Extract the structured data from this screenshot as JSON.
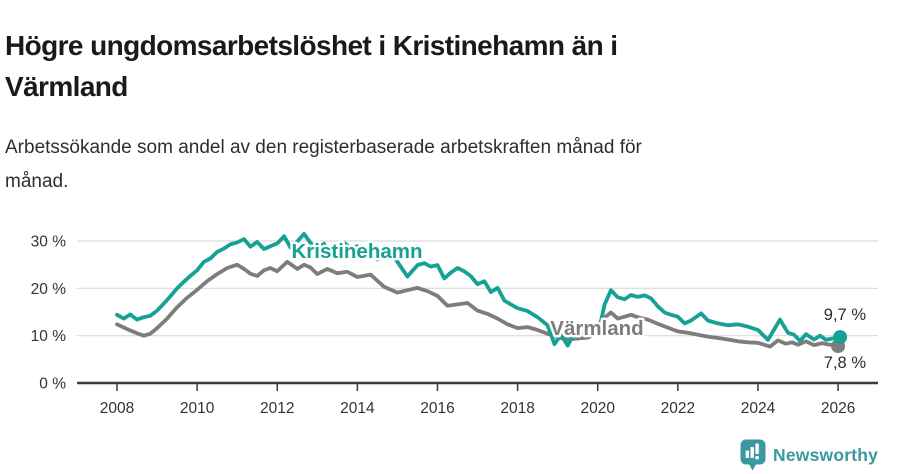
{
  "header": {
    "title_lines": [
      "Högre ungdomsarbetslöshet i Kristinehamn än i",
      "Värmland"
    ],
    "subtitle_lines": [
      "Arbetssökande som andel av den registerbaserade arbetskraften månad för",
      "månad."
    ]
  },
  "chart_data": {
    "type": "line",
    "title": "Högre ungdomsarbetslöshet i Kristinehamn än i Värmland",
    "subtitle": "Arbetssökande som andel av den registerbaserade arbetskraften månad för månad.",
    "unit": "%",
    "grid": "horizontal",
    "legend_position": "inline-labels",
    "x_axis": {
      "ticks": [
        2008,
        2010,
        2012,
        2014,
        2016,
        2018,
        2020,
        2022,
        2024,
        2026
      ],
      "range": [
        2007.8,
        2027.0
      ]
    },
    "y_axis": {
      "ticks": [
        {
          "value": 0,
          "label": "0 %"
        },
        {
          "value": 10,
          "label": "10 %"
        },
        {
          "value": 20,
          "label": "20 %"
        },
        {
          "value": 30,
          "label": "30 %"
        }
      ],
      "range": [
        0,
        32
      ]
    },
    "series": [
      {
        "name": "Värmland",
        "color": "#7d7d7d",
        "end_label": "7,8 %",
        "final_value": 7.8,
        "points": [
          [
            2008,
            12.4
          ],
          [
            2008.25,
            11.4
          ],
          [
            2008.5,
            10.5
          ],
          [
            2008.67,
            10
          ],
          [
            2008.83,
            10.4
          ],
          [
            2009,
            11.6
          ],
          [
            2009.25,
            13.6
          ],
          [
            2009.5,
            16
          ],
          [
            2009.75,
            18
          ],
          [
            2010,
            19.7
          ],
          [
            2010.25,
            21.5
          ],
          [
            2010.5,
            23
          ],
          [
            2010.75,
            24.3
          ],
          [
            2011,
            25
          ],
          [
            2011.17,
            24.1
          ],
          [
            2011.33,
            23.1
          ],
          [
            2011.5,
            22.6
          ],
          [
            2011.67,
            23.8
          ],
          [
            2011.83,
            24.3
          ],
          [
            2012,
            23.6
          ],
          [
            2012.25,
            25.6
          ],
          [
            2012.5,
            24.1
          ],
          [
            2012.67,
            25
          ],
          [
            2012.83,
            24.4
          ],
          [
            2013,
            23
          ],
          [
            2013.25,
            24.1
          ],
          [
            2013.5,
            23.2
          ],
          [
            2013.75,
            23.5
          ],
          [
            2014,
            22.4
          ],
          [
            2014.33,
            22.9
          ],
          [
            2014.67,
            20.3
          ],
          [
            2015,
            19.1
          ],
          [
            2015.25,
            19.6
          ],
          [
            2015.5,
            20.1
          ],
          [
            2015.75,
            19.4
          ],
          [
            2016,
            18.4
          ],
          [
            2016.25,
            16.3
          ],
          [
            2016.5,
            16.6
          ],
          [
            2016.75,
            16.9
          ],
          [
            2017,
            15.3
          ],
          [
            2017.25,
            14.6
          ],
          [
            2017.5,
            13.6
          ],
          [
            2017.75,
            12.4
          ],
          [
            2018,
            11.6
          ],
          [
            2018.25,
            11.8
          ],
          [
            2018.5,
            11.2
          ],
          [
            2018.75,
            10.4
          ],
          [
            2019,
            9.7
          ],
          [
            2019.25,
            9.2
          ],
          [
            2019.5,
            9.4
          ],
          [
            2019.75,
            9.6
          ],
          [
            2020,
            10.6
          ],
          [
            2020.17,
            13.8
          ],
          [
            2020.33,
            14.9
          ],
          [
            2020.5,
            13.6
          ],
          [
            2020.67,
            14
          ],
          [
            2020.83,
            14.4
          ],
          [
            2021,
            13.9
          ],
          [
            2021.25,
            13.4
          ],
          [
            2021.5,
            12.5
          ],
          [
            2021.75,
            11.7
          ],
          [
            2022,
            10.9
          ],
          [
            2022.25,
            10.6
          ],
          [
            2022.5,
            10.2
          ],
          [
            2022.75,
            9.8
          ],
          [
            2023,
            9.5
          ],
          [
            2023.25,
            9.2
          ],
          [
            2023.5,
            8.8
          ],
          [
            2023.75,
            8.6
          ],
          [
            2024,
            8.5
          ],
          [
            2024.3,
            7.7
          ],
          [
            2024.5,
            9
          ],
          [
            2024.7,
            8.3
          ],
          [
            2024.85,
            8.6
          ],
          [
            2025,
            8.1
          ],
          [
            2025.2,
            8.8
          ],
          [
            2025.4,
            8
          ],
          [
            2025.6,
            8.4
          ],
          [
            2025.8,
            8.1
          ],
          [
            2026,
            7.8
          ]
        ]
      },
      {
        "name": "Kristinehamn",
        "color": "#16a195",
        "end_label": "9,7 %",
        "final_value": 9.7,
        "points": [
          [
            2008,
            14.4
          ],
          [
            2008.17,
            13.6
          ],
          [
            2008.33,
            14.5
          ],
          [
            2008.5,
            13.4
          ],
          [
            2008.67,
            13.9
          ],
          [
            2008.83,
            14.2
          ],
          [
            2009,
            15.3
          ],
          [
            2009.17,
            16.8
          ],
          [
            2009.33,
            18.3
          ],
          [
            2009.5,
            20
          ],
          [
            2009.67,
            21.4
          ],
          [
            2009.83,
            22.6
          ],
          [
            2010,
            23.8
          ],
          [
            2010.17,
            25.6
          ],
          [
            2010.33,
            26.3
          ],
          [
            2010.5,
            27.7
          ],
          [
            2010.67,
            28.4
          ],
          [
            2010.83,
            29.3
          ],
          [
            2011,
            29.7
          ],
          [
            2011.17,
            30.4
          ],
          [
            2011.33,
            28.8
          ],
          [
            2011.5,
            29.8
          ],
          [
            2011.67,
            28.3
          ],
          [
            2011.83,
            28.9
          ],
          [
            2012,
            29.5
          ],
          [
            2012.17,
            31
          ],
          [
            2012.33,
            28.6
          ],
          [
            2012.5,
            29.9
          ],
          [
            2012.67,
            31.5
          ],
          [
            2012.83,
            29.6
          ],
          [
            2013,
            28.3
          ],
          [
            2013.17,
            29.4
          ],
          [
            2013.33,
            26.9
          ],
          [
            2013.5,
            28.2
          ],
          [
            2013.67,
            29.6
          ],
          [
            2013.83,
            28.6
          ],
          [
            2014,
            28.9
          ],
          [
            2014.17,
            27.6
          ],
          [
            2014.33,
            28.3
          ],
          [
            2014.5,
            26.1
          ],
          [
            2014.67,
            26.9
          ],
          [
            2014.83,
            27.4
          ],
          [
            2015,
            25.6
          ],
          [
            2015.25,
            22.5
          ],
          [
            2015.5,
            24.9
          ],
          [
            2015.67,
            25.3
          ],
          [
            2015.83,
            24.6
          ],
          [
            2016,
            24.9
          ],
          [
            2016.17,
            22.1
          ],
          [
            2016.33,
            23.3
          ],
          [
            2016.5,
            24.3
          ],
          [
            2016.67,
            23.6
          ],
          [
            2016.83,
            22.6
          ],
          [
            2017,
            20.9
          ],
          [
            2017.17,
            21.5
          ],
          [
            2017.33,
            19.2
          ],
          [
            2017.5,
            20.1
          ],
          [
            2017.67,
            17.4
          ],
          [
            2017.83,
            16.6
          ],
          [
            2018,
            15.8
          ],
          [
            2018.25,
            15.2
          ],
          [
            2018.5,
            13.9
          ],
          [
            2018.75,
            12.2
          ],
          [
            2018.92,
            8.2
          ],
          [
            2019.08,
            10.2
          ],
          [
            2019.25,
            7.9
          ],
          [
            2019.42,
            10.6
          ],
          [
            2019.58,
            10.3
          ],
          [
            2019.75,
            11
          ],
          [
            2019.92,
            11.5
          ],
          [
            2020.08,
            13
          ],
          [
            2020.17,
            16.5
          ],
          [
            2020.33,
            19.6
          ],
          [
            2020.5,
            18.1
          ],
          [
            2020.67,
            17.7
          ],
          [
            2020.83,
            18.6
          ],
          [
            2021,
            18.2
          ],
          [
            2021.17,
            18.5
          ],
          [
            2021.33,
            17.9
          ],
          [
            2021.5,
            16.2
          ],
          [
            2021.67,
            14.9
          ],
          [
            2021.83,
            14.4
          ],
          [
            2022,
            14
          ],
          [
            2022.17,
            12.6
          ],
          [
            2022.33,
            13.2
          ],
          [
            2022.58,
            14.7
          ],
          [
            2022.75,
            13.2
          ],
          [
            2023,
            12.6
          ],
          [
            2023.25,
            12.2
          ],
          [
            2023.5,
            12.4
          ],
          [
            2023.75,
            11.9
          ],
          [
            2024,
            11.2
          ],
          [
            2024.25,
            9.1
          ],
          [
            2024.55,
            13.4
          ],
          [
            2024.75,
            10.6
          ],
          [
            2024.9,
            10.2
          ],
          [
            2025.05,
            8.9
          ],
          [
            2025.2,
            10.3
          ],
          [
            2025.4,
            9.2
          ],
          [
            2025.55,
            10
          ],
          [
            2025.7,
            9.1
          ],
          [
            2025.85,
            9.4
          ],
          [
            2026.05,
            9.7
          ]
        ]
      }
    ]
  },
  "footer": {
    "brand": "Newsworthy",
    "brand_color": "#3b97a1",
    "logo_icon": "bar-chart-speech-bubble"
  }
}
